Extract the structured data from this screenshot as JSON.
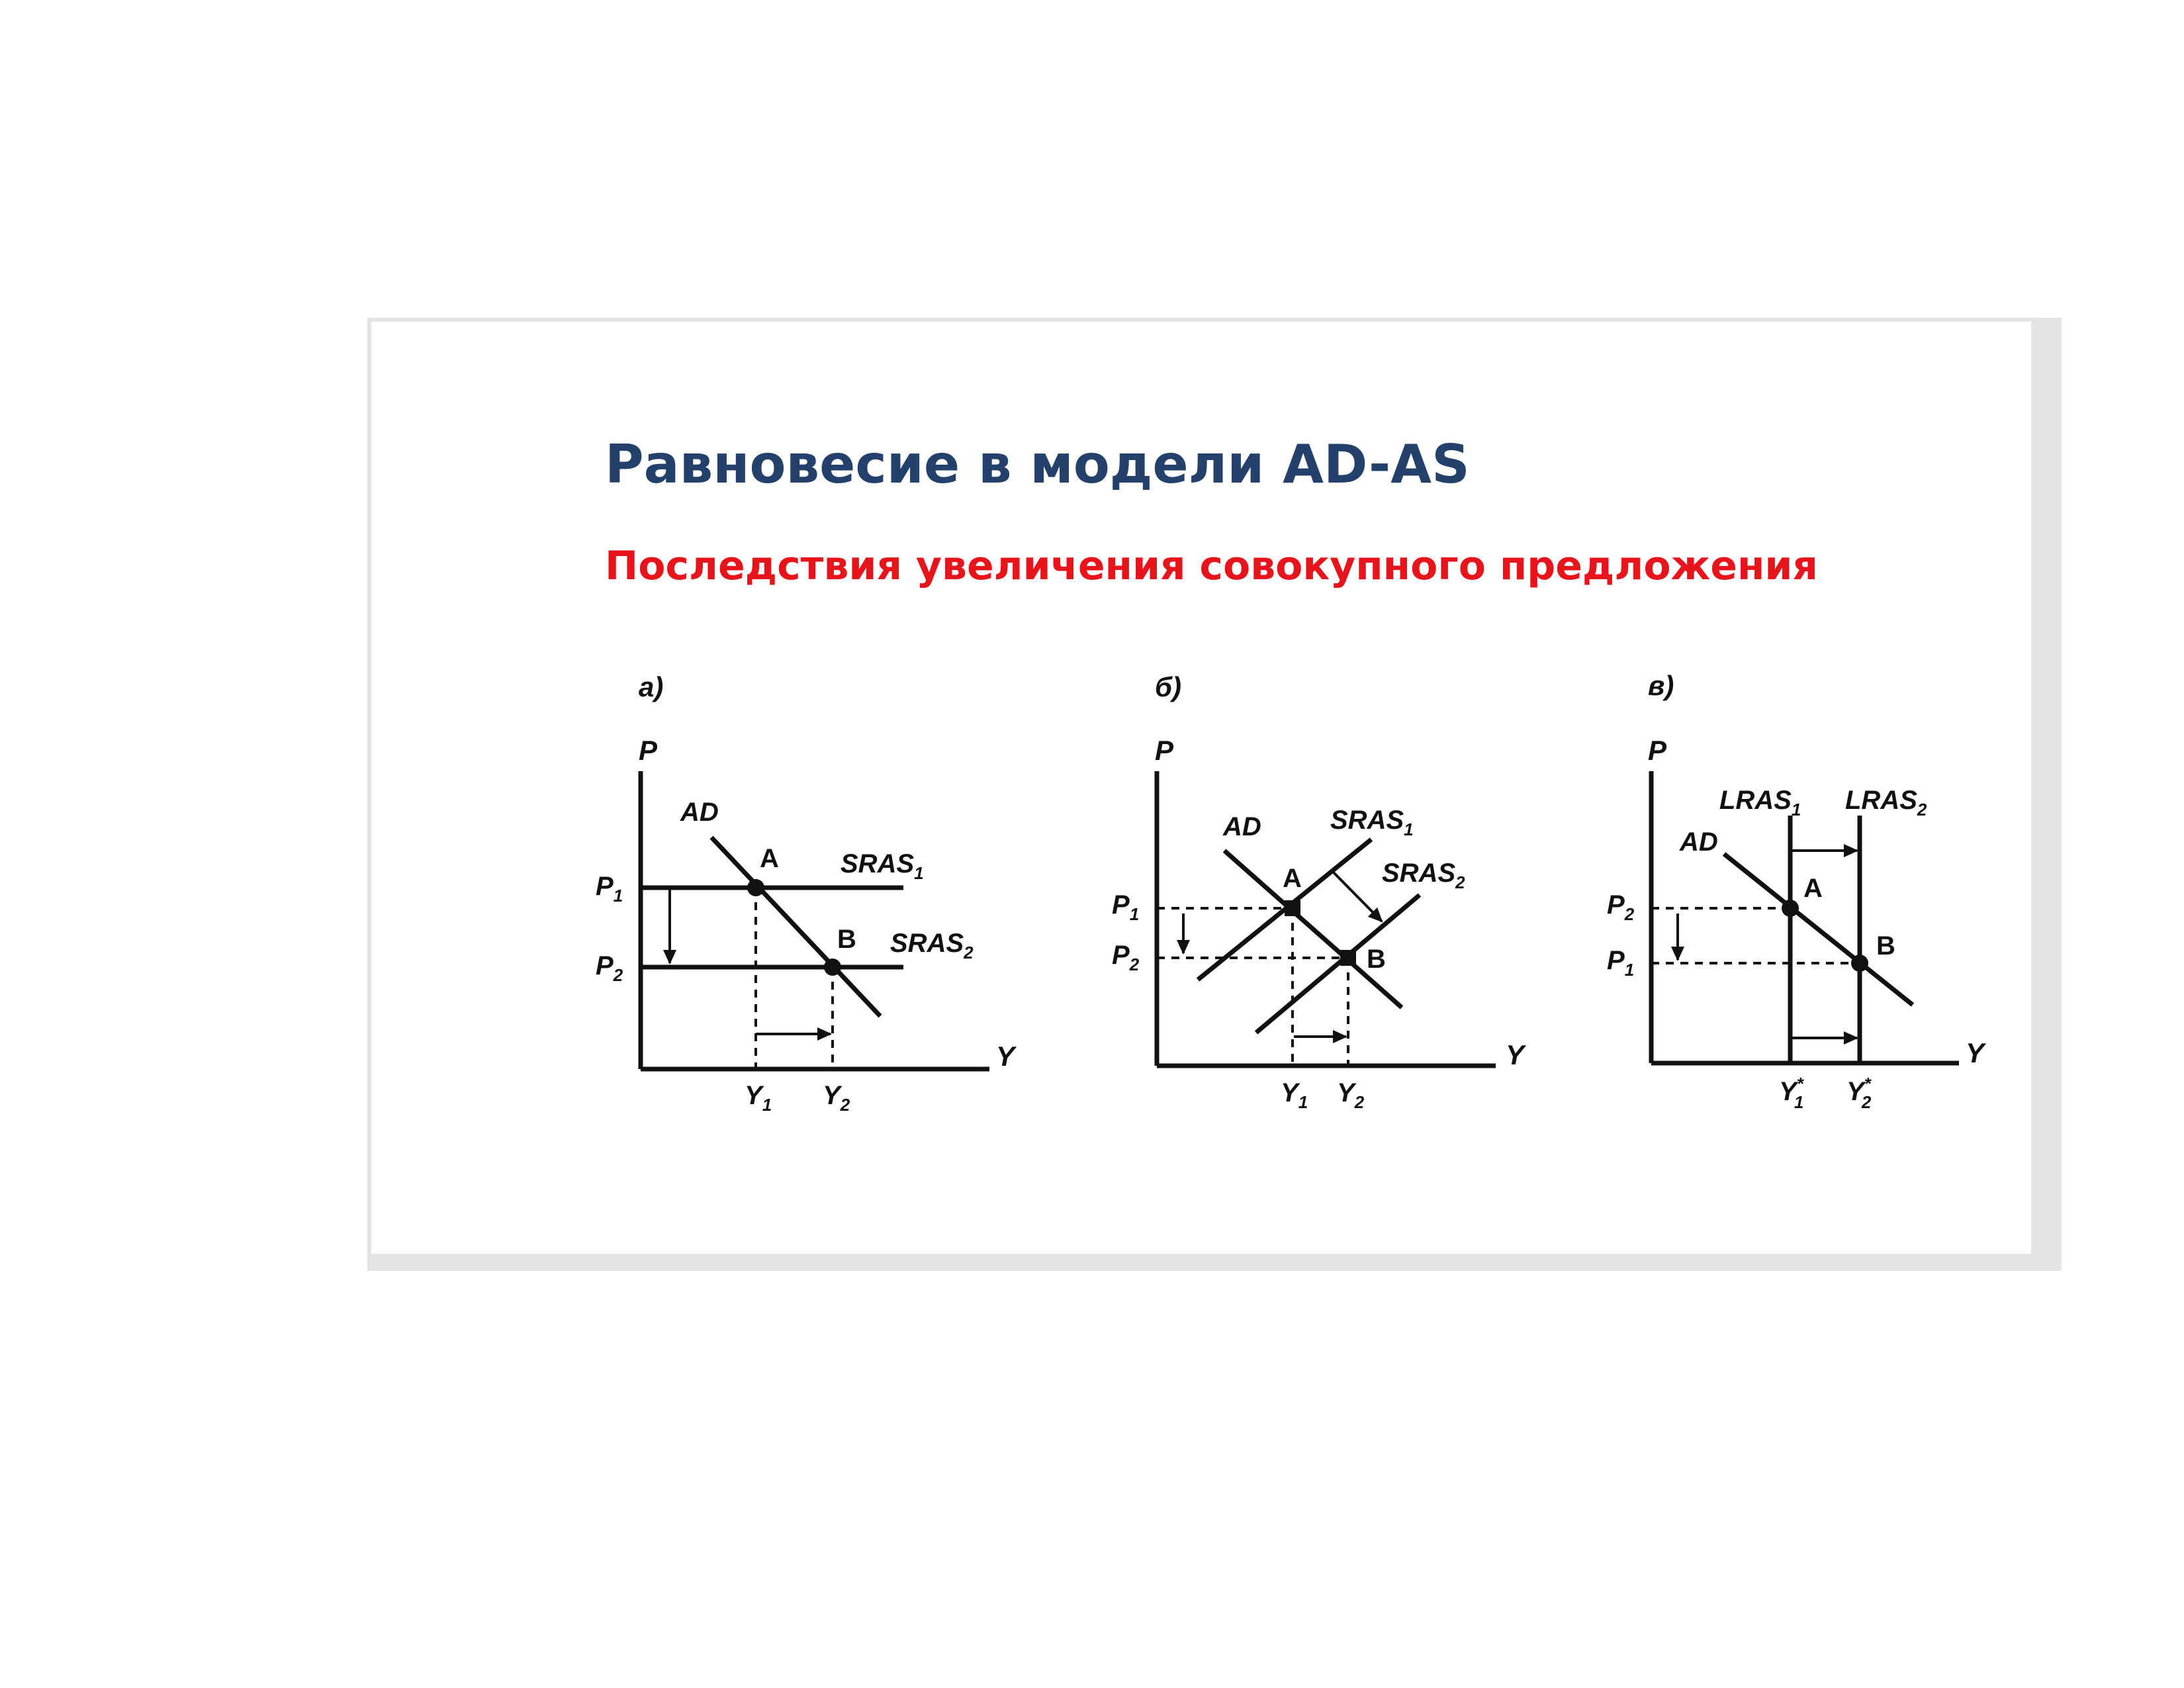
{
  "title": "Равновесие в модели AD-AS",
  "subtitle": "Последствия увеличения совокупного предложения",
  "colors": {
    "title": "#24416b",
    "subtitle": "#e8141b",
    "lines": "#111111"
  },
  "panels": [
    {
      "id": "a",
      "label": "а)",
      "axis_y": "P",
      "axis_x": "Y",
      "curves": {
        "ad": "AD",
        "s1": "SRAS",
        "s1_sub": "1",
        "s2": "SRAS",
        "s2_sub": "2"
      },
      "points": {
        "a": "A",
        "b": "B"
      },
      "price_labels": [
        {
          "main": "P",
          "sub": "1"
        },
        {
          "main": "P",
          "sub": "2"
        }
      ],
      "output_labels": [
        {
          "main": "Y",
          "sub": "1"
        },
        {
          "main": "Y",
          "sub": "2"
        }
      ]
    },
    {
      "id": "b",
      "label": "б)",
      "axis_y": "P",
      "axis_x": "Y",
      "curves": {
        "ad": "AD",
        "s1": "SRAS",
        "s1_sub": "1",
        "s2": "SRAS",
        "s2_sub": "2"
      },
      "points": {
        "a": "A",
        "b": "B"
      },
      "price_labels": [
        {
          "main": "P",
          "sub": "1"
        },
        {
          "main": "P",
          "sub": "2"
        }
      ],
      "output_labels": [
        {
          "main": "Y",
          "sub": "1"
        },
        {
          "main": "Y",
          "sub": "2"
        }
      ]
    },
    {
      "id": "c",
      "label": "в)",
      "axis_y": "P",
      "axis_x": "Y",
      "curves": {
        "ad": "AD",
        "s1": "LRAS",
        "s1_sub": "1",
        "s2": "LRAS",
        "s2_sub": "2"
      },
      "points": {
        "a": "A",
        "b": "B"
      },
      "price_labels": [
        {
          "main": "P",
          "sub": "2"
        },
        {
          "main": "P",
          "sub": "1"
        }
      ],
      "output_labels": [
        {
          "main": "Y",
          "sub": "1",
          "sup": "*"
        },
        {
          "main": "Y",
          "sub": "2",
          "sup": "*"
        }
      ]
    }
  ]
}
